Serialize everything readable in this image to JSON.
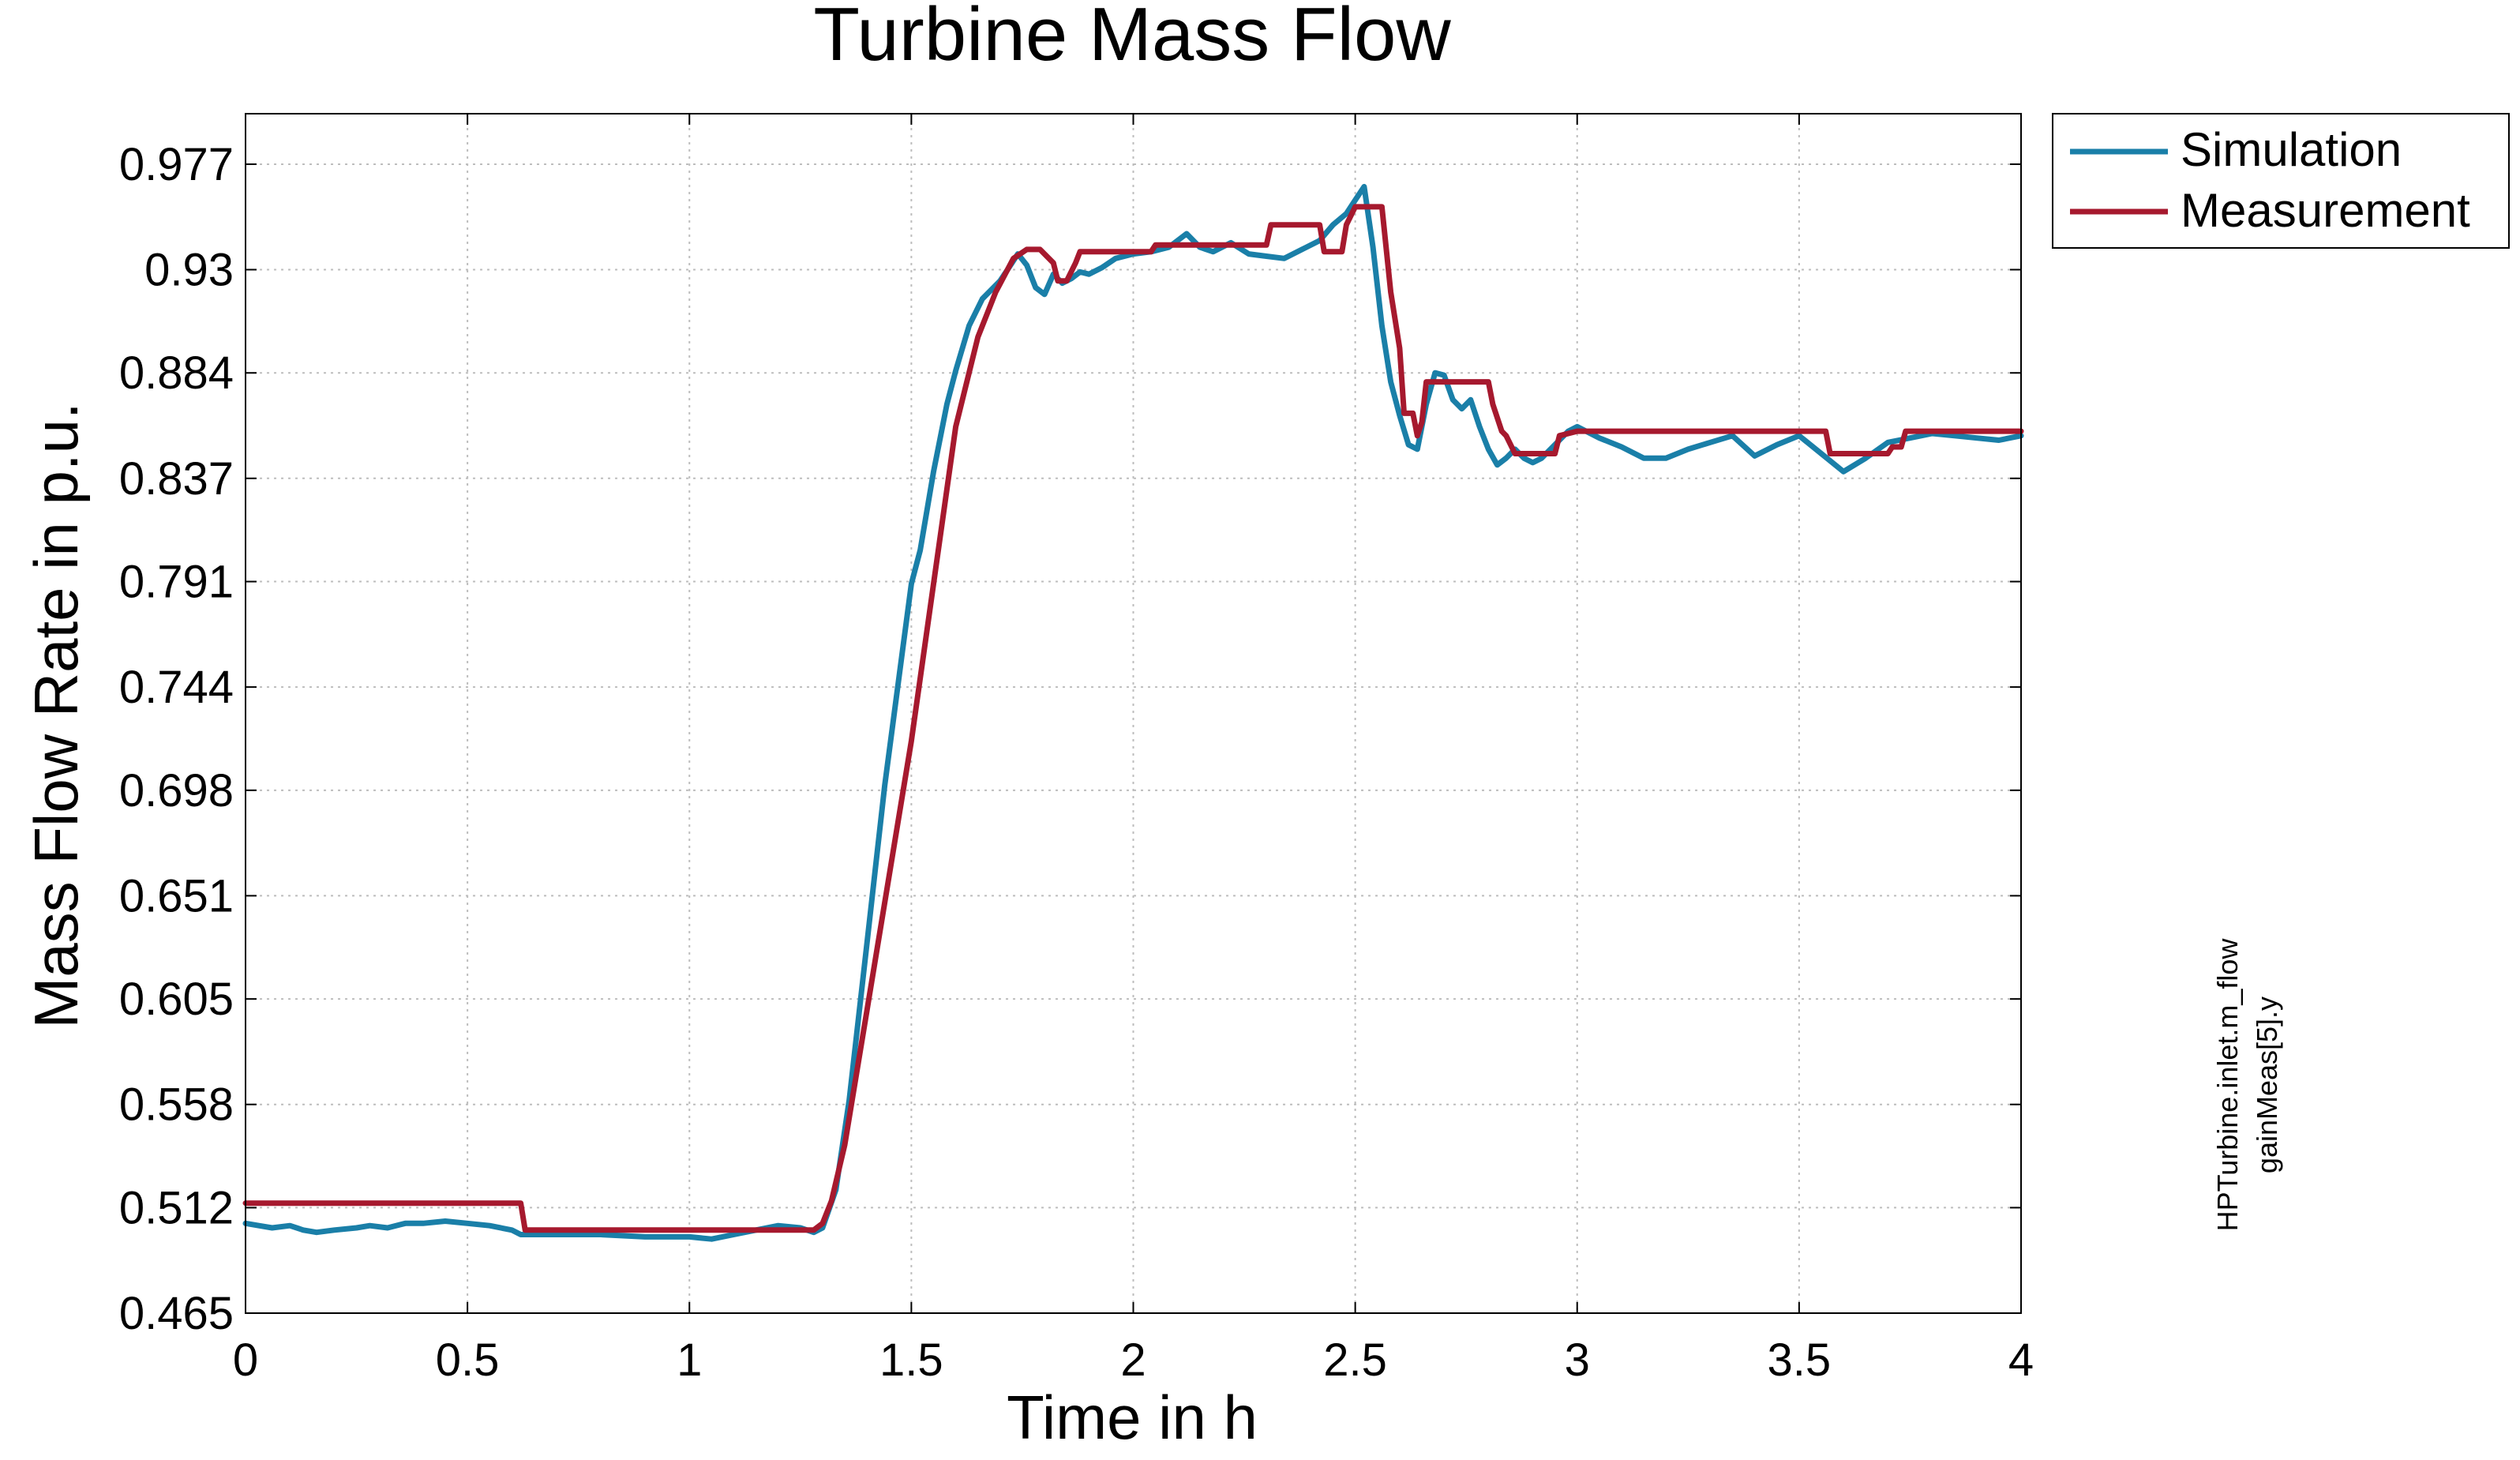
{
  "chart_data": {
    "type": "line",
    "title": "Turbine Mass Flow",
    "xlabel": "Time in h",
    "ylabel": "Mass Flow Rate in p.u.",
    "xlim": [
      0,
      4
    ],
    "ylim": [
      0.465,
      0.9995
    ],
    "x_ticks": [
      0,
      0.5,
      1,
      1.5,
      2,
      2.5,
      3,
      3.5,
      4
    ],
    "x_tick_labels": [
      "0",
      "0.5",
      "1",
      "1.5",
      "2",
      "2.5",
      "3",
      "3.5",
      "4"
    ],
    "y_ticks": [
      0.465,
      0.512,
      0.558,
      0.605,
      0.651,
      0.698,
      0.744,
      0.791,
      0.837,
      0.884,
      0.93,
      0.977
    ],
    "y_tick_labels": [
      "0.465",
      "0.512",
      "0.558",
      "0.605",
      "0.651",
      "0.698",
      "0.744",
      "0.791",
      "0.837",
      "0.884",
      "0.93",
      "0.977"
    ],
    "grid": true,
    "legend_position": "outside-top-right",
    "side_annotation": [
      "HPTurbine.inlet.m_flow",
      "gainMeas[5].y"
    ],
    "series": [
      {
        "name": "Simulation",
        "color": "#1a7fa8",
        "x": [
          0,
          0.03,
          0.06,
          0.1,
          0.13,
          0.16,
          0.2,
          0.25,
          0.28,
          0.32,
          0.36,
          0.4,
          0.45,
          0.5,
          0.55,
          0.6,
          0.62,
          0.65,
          0.7,
          0.8,
          0.9,
          1.0,
          1.05,
          1.1,
          1.15,
          1.2,
          1.25,
          1.28,
          1.3,
          1.33,
          1.36,
          1.4,
          1.44,
          1.48,
          1.5,
          1.52,
          1.55,
          1.58,
          1.6,
          1.63,
          1.66,
          1.7,
          1.72,
          1.74,
          1.76,
          1.78,
          1.8,
          1.82,
          1.84,
          1.86,
          1.88,
          1.9,
          1.93,
          1.96,
          2.0,
          2.04,
          2.08,
          2.12,
          2.15,
          2.18,
          2.22,
          2.26,
          2.3,
          2.34,
          2.38,
          2.42,
          2.45,
          2.48,
          2.5,
          2.52,
          2.54,
          2.56,
          2.58,
          2.6,
          2.62,
          2.64,
          2.66,
          2.68,
          2.7,
          2.72,
          2.74,
          2.76,
          2.78,
          2.8,
          2.82,
          2.84,
          2.86,
          2.88,
          2.9,
          2.92,
          2.95,
          2.98,
          3.0,
          3.05,
          3.1,
          3.15,
          3.2,
          3.25,
          3.3,
          3.35,
          3.4,
          3.45,
          3.5,
          3.55,
          3.6,
          3.65,
          3.7,
          3.75,
          3.8,
          3.85,
          3.9,
          3.95,
          4.0
        ],
        "values": [
          0.505,
          0.504,
          0.503,
          0.504,
          0.502,
          0.501,
          0.502,
          0.503,
          0.504,
          0.503,
          0.505,
          0.505,
          0.506,
          0.505,
          0.504,
          0.502,
          0.5,
          0.5,
          0.5,
          0.5,
          0.499,
          0.499,
          0.498,
          0.5,
          0.502,
          0.504,
          0.503,
          0.501,
          0.503,
          0.52,
          0.56,
          0.63,
          0.7,
          0.76,
          0.79,
          0.805,
          0.84,
          0.87,
          0.885,
          0.905,
          0.917,
          0.925,
          0.931,
          0.937,
          0.932,
          0.922,
          0.919,
          0.928,
          0.924,
          0.926,
          0.929,
          0.928,
          0.931,
          0.935,
          0.937,
          0.938,
          0.94,
          0.946,
          0.94,
          0.938,
          0.942,
          0.937,
          0.936,
          0.935,
          0.939,
          0.943,
          0.95,
          0.955,
          0.961,
          0.967,
          0.94,
          0.905,
          0.88,
          0.865,
          0.852,
          0.85,
          0.87,
          0.884,
          0.883,
          0.872,
          0.868,
          0.872,
          0.86,
          0.85,
          0.843,
          0.846,
          0.85,
          0.846,
          0.844,
          0.846,
          0.852,
          0.858,
          0.86,
          0.855,
          0.851,
          0.846,
          0.846,
          0.85,
          0.853,
          0.856,
          0.847,
          0.852,
          0.856,
          0.848,
          0.84,
          0.846,
          0.853,
          0.855,
          0.857,
          0.856,
          0.855,
          0.854,
          0.856
        ]
      },
      {
        "name": "Measurement",
        "color": "#a6192e",
        "x": [
          0,
          0.62,
          0.63,
          1.28,
          1.3,
          1.32,
          1.35,
          1.4,
          1.45,
          1.5,
          1.55,
          1.6,
          1.65,
          1.69,
          1.73,
          1.76,
          1.78,
          1.79,
          1.82,
          1.83,
          1.84,
          1.85,
          1.87,
          1.88,
          1.94,
          1.98,
          2.04,
          2.05,
          2.3,
          2.31,
          2.42,
          2.43,
          2.47,
          2.48,
          2.5,
          2.53,
          2.56,
          2.58,
          2.6,
          2.61,
          2.63,
          2.64,
          2.65,
          2.66,
          2.67,
          2.69,
          2.8,
          2.81,
          2.83,
          2.84,
          2.86,
          2.87,
          2.95,
          2.96,
          3.0,
          3.02,
          3.56,
          3.57,
          3.7,
          3.71,
          3.73,
          3.74,
          4.0
        ],
        "values": [
          0.514,
          0.514,
          0.502,
          0.502,
          0.505,
          0.515,
          0.54,
          0.6,
          0.66,
          0.72,
          0.79,
          0.86,
          0.9,
          0.92,
          0.935,
          0.939,
          0.939,
          0.939,
          0.933,
          0.925,
          0.925,
          0.925,
          0.933,
          0.938,
          0.938,
          0.938,
          0.938,
          0.941,
          0.941,
          0.95,
          0.95,
          0.938,
          0.938,
          0.95,
          0.958,
          0.958,
          0.958,
          0.92,
          0.895,
          0.866,
          0.866,
          0.856,
          0.862,
          0.88,
          0.88,
          0.88,
          0.88,
          0.87,
          0.858,
          0.856,
          0.848,
          0.848,
          0.848,
          0.856,
          0.858,
          0.858,
          0.858,
          0.848,
          0.848,
          0.851,
          0.851,
          0.858,
          0.858
        ]
      }
    ]
  },
  "colors": {
    "grid": "#bdbdbd",
    "axes": "#000000",
    "background": "#ffffff"
  }
}
